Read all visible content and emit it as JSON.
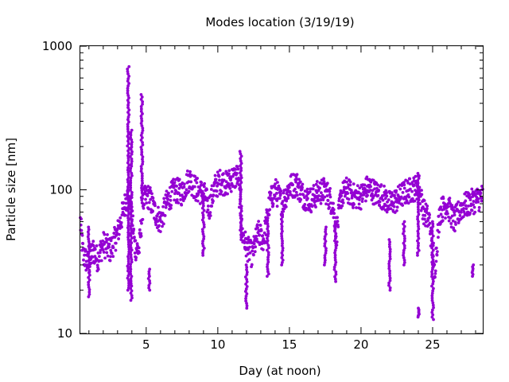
{
  "chart_data": {
    "type": "scatter",
    "title": "Modes location (3/19/19)",
    "xlabel": "Day (at noon)",
    "ylabel": "Particle size [nm]",
    "xlim": [
      0.4,
      28.5
    ],
    "ylim": [
      10,
      1000
    ],
    "yscale": "log",
    "grid": false,
    "legend": "none",
    "x_ticks": [
      5,
      10,
      15,
      20,
      25
    ],
    "x_tick_labels": [
      "5",
      "10",
      "15",
      "20",
      "25"
    ],
    "y_ticks": [
      10,
      100,
      1000
    ],
    "y_tick_labels": [
      "10",
      "100",
      "1000"
    ],
    "marker_color": "#9400D3",
    "series": [
      {
        "anchors": [
          [
            0.4,
            60
          ],
          [
            0.6,
            35
          ],
          [
            1.0,
            30
          ],
          [
            1.3,
            38
          ],
          [
            1.6,
            33
          ],
          [
            2.0,
            42
          ],
          [
            2.5,
            38
          ],
          [
            3.0,
            50
          ],
          [
            3.3,
            65
          ],
          [
            3.6,
            85
          ],
          [
            3.9,
            95
          ],
          [
            4.2,
            40
          ],
          [
            4.5,
            38
          ],
          [
            4.8,
            85
          ],
          [
            5.2,
            90
          ],
          [
            5.6,
            70
          ],
          [
            6.0,
            60
          ],
          [
            6.5,
            85
          ],
          [
            7.0,
            100
          ],
          [
            7.5,
            95
          ],
          [
            8.0,
            120
          ],
          [
            8.5,
            100
          ],
          [
            9.0,
            95
          ],
          [
            9.4,
            75
          ],
          [
            9.8,
            105
          ],
          [
            10.2,
            115
          ],
          [
            10.6,
            110
          ],
          [
            11.0,
            120
          ],
          [
            11.4,
            125
          ],
          [
            11.7,
            50
          ],
          [
            12.0,
            40
          ],
          [
            12.4,
            35
          ],
          [
            12.8,
            50
          ],
          [
            13.2,
            45
          ],
          [
            13.6,
            80
          ],
          [
            14.0,
            100
          ],
          [
            14.5,
            80
          ],
          [
            15.0,
            105
          ],
          [
            15.5,
            110
          ],
          [
            16.0,
            90
          ],
          [
            16.5,
            85
          ],
          [
            17.0,
            95
          ],
          [
            17.5,
            100
          ],
          [
            18.0,
            80
          ],
          [
            18.3,
            50
          ],
          [
            18.6,
            90
          ],
          [
            19.0,
            100
          ],
          [
            19.5,
            90
          ],
          [
            20.0,
            90
          ],
          [
            20.5,
            105
          ],
          [
            21.0,
            95
          ],
          [
            21.5,
            90
          ],
          [
            22.0,
            80
          ],
          [
            22.5,
            85
          ],
          [
            23.0,
            95
          ],
          [
            23.5,
            100
          ],
          [
            24.0,
            105
          ],
          [
            24.4,
            70
          ],
          [
            24.8,
            60
          ],
          [
            25.1,
            25
          ],
          [
            25.5,
            70
          ],
          [
            26.0,
            80
          ],
          [
            26.5,
            60
          ],
          [
            27.0,
            75
          ],
          [
            27.5,
            80
          ],
          [
            28.0,
            85
          ],
          [
            28.5,
            90
          ]
        ],
        "spread": 0.09,
        "spikes": [
          {
            "x": 1.0,
            "ymin": 18,
            "ymax": 55
          },
          {
            "x": 3.75,
            "ymin": 20,
            "ymax": 720
          },
          {
            "x": 3.95,
            "ymin": 17,
            "ymax": 260
          },
          {
            "x": 4.7,
            "ymin": 85,
            "ymax": 460
          },
          {
            "x": 5.2,
            "ymin": 20,
            "ymax": 28
          },
          {
            "x": 9.0,
            "ymin": 35,
            "ymax": 90
          },
          {
            "x": 11.6,
            "ymin": 45,
            "ymax": 185
          },
          {
            "x": 12.0,
            "ymin": 15,
            "ymax": 30
          },
          {
            "x": 13.5,
            "ymin": 25,
            "ymax": 60
          },
          {
            "x": 14.5,
            "ymin": 30,
            "ymax": 70
          },
          {
            "x": 17.5,
            "ymin": 30,
            "ymax": 55
          },
          {
            "x": 18.2,
            "ymin": 23,
            "ymax": 60
          },
          {
            "x": 22.0,
            "ymin": 20,
            "ymax": 45
          },
          {
            "x": 23.0,
            "ymin": 30,
            "ymax": 60
          },
          {
            "x": 24.0,
            "ymin": 13,
            "ymax": 15
          },
          {
            "x": 24.0,
            "ymin": 35,
            "ymax": 130
          },
          {
            "x": 25.0,
            "ymin": 12.5,
            "ymax": 60
          },
          {
            "x": 27.8,
            "ymin": 25,
            "ymax": 30
          }
        ]
      }
    ]
  }
}
